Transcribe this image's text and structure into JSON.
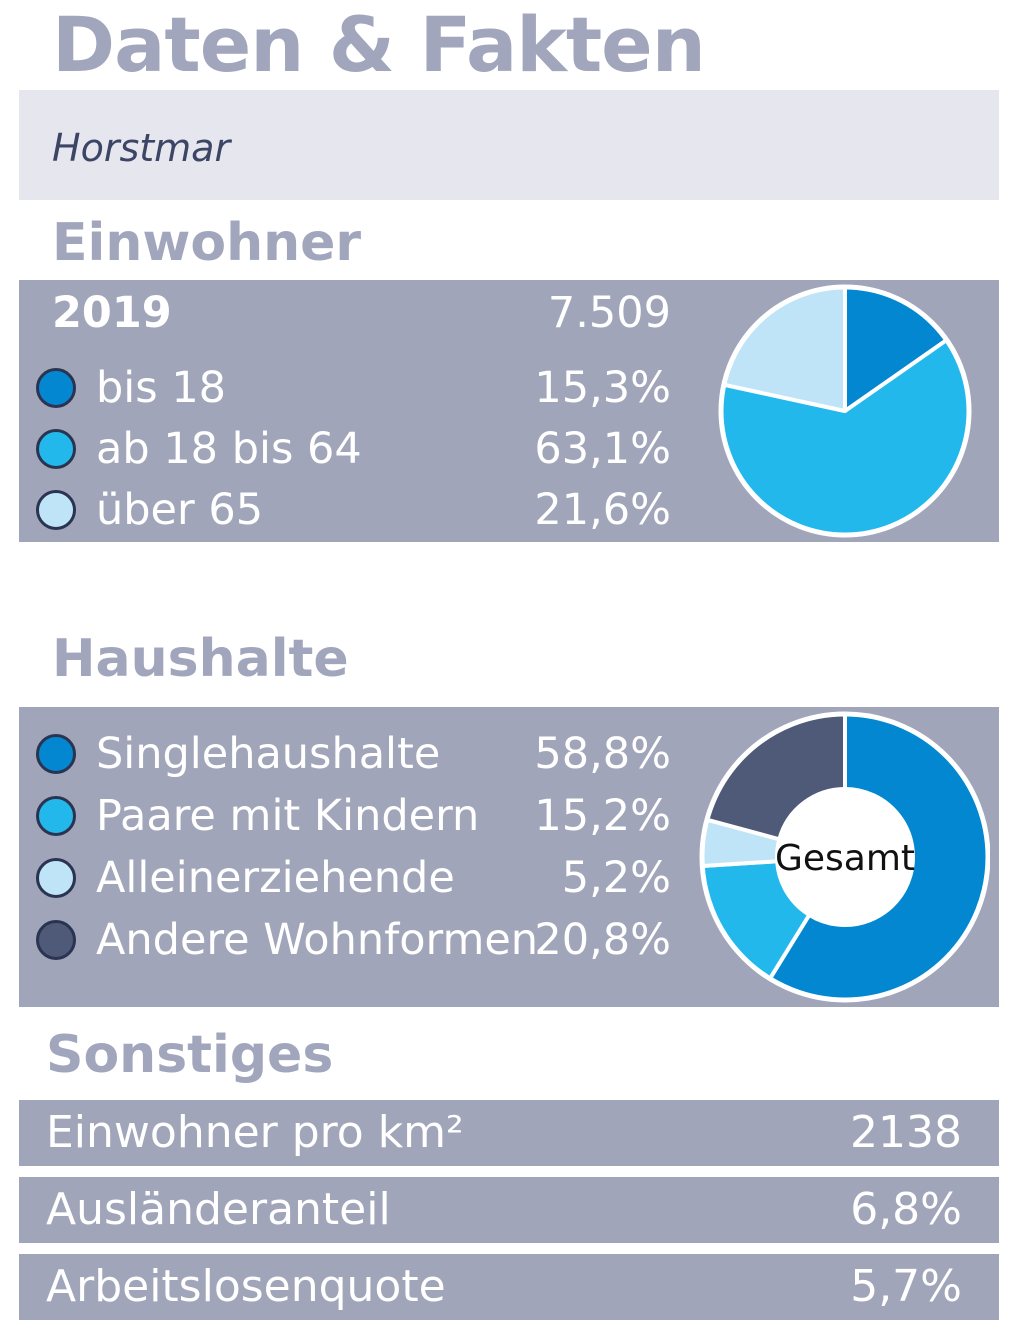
{
  "header": {
    "title": "Daten & Fakten",
    "location": "Horstmar"
  },
  "einwohner": {
    "heading": "Einwohner",
    "year": "2019",
    "total": "7.509",
    "items": [
      {
        "label": "bis 18",
        "value_text": "15,3%"
      },
      {
        "label": "ab 18 bis 64",
        "value_text": "63,1%"
      },
      {
        "label": "über 65",
        "value_text": "21,6%"
      }
    ]
  },
  "haushalte": {
    "heading": "Haushalte",
    "items": [
      {
        "label": "Singlehaushalte",
        "value_text": "58,8%"
      },
      {
        "label": "Paare mit Kindern",
        "value_text": "15,2%"
      },
      {
        "label": "Alleinerziehende",
        "value_text": "5,2%"
      },
      {
        "label": "Andere Wohnformen",
        "value_text": "20,8%"
      }
    ]
  },
  "sonstiges": {
    "heading": "Sonstiges",
    "rows": [
      {
        "label": "Einwohner pro km²",
        "value": "2138"
      },
      {
        "label": "Ausländeranteil",
        "value": "6,8%"
      },
      {
        "label": "Arbeitslosenquote",
        "value": "5,7%"
      }
    ]
  },
  "chart_data": [
    {
      "type": "pie",
      "categories": [
        "bis 18",
        "ab 18 bis 64",
        "über 65"
      ],
      "values": [
        15.3,
        63.1,
        21.6
      ],
      "colors": [
        "#0387d1",
        "#23b8ec",
        "#bfe4f7"
      ]
    },
    {
      "type": "pie",
      "donut": true,
      "center_label": "Gesamt",
      "categories": [
        "Singlehaushalte",
        "Paare mit Kindern",
        "Alleinerziehende",
        "Andere Wohnformen"
      ],
      "values": [
        58.8,
        15.2,
        5.2,
        20.8
      ],
      "colors": [
        "#0387d1",
        "#23b8ec",
        "#bfe4f7",
        "#4f5a79"
      ]
    }
  ]
}
